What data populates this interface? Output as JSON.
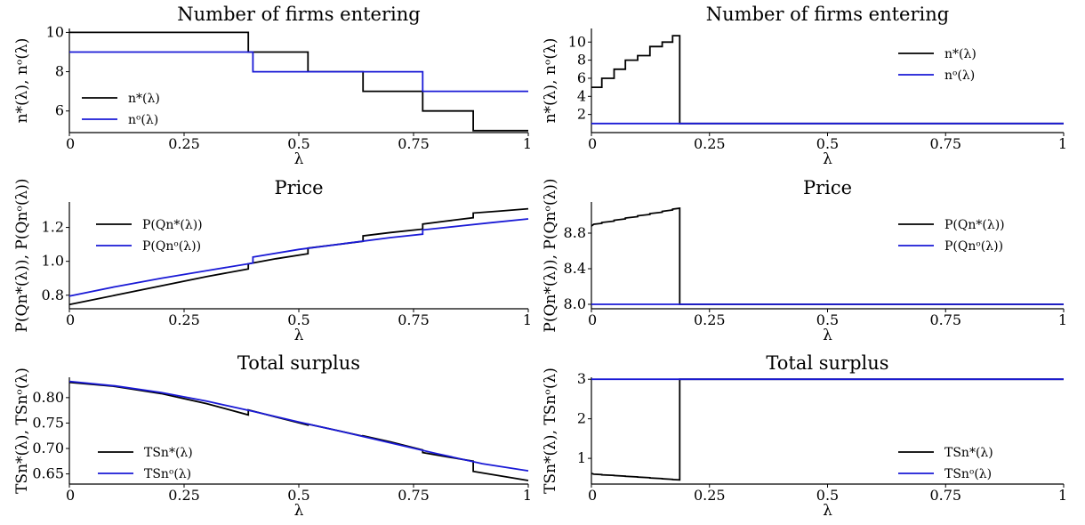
{
  "chart_data": [
    {
      "type": "line",
      "title": "Number of firms entering",
      "xlabel": "λ",
      "ylabel": "n*(λ),  nᵒ(λ)",
      "xlim": [
        0,
        1
      ],
      "ylim": [
        4.9,
        10.2
      ],
      "xticks": [
        0,
        0.25,
        0.5,
        0.75,
        1
      ],
      "xticklabels": [
        "0",
        "0.25",
        "0.5",
        "0.75",
        "1"
      ],
      "yticks": [
        6,
        8,
        10
      ],
      "yticklabels": [
        "6",
        "8",
        "10"
      ],
      "legend": "lower-left",
      "series": [
        {
          "name": "n*(λ)",
          "color": "#000000",
          "step": true,
          "x": [
            0,
            0.39,
            0.52,
            0.64,
            0.77,
            0.88,
            1
          ],
          "y": [
            10,
            9,
            8,
            7,
            6,
            5,
            5
          ]
        },
        {
          "name": "nᵒ(λ)",
          "color": "#1a1ad6",
          "step": true,
          "x": [
            0,
            0.4,
            0.77,
            1
          ],
          "y": [
            9,
            8,
            7,
            7
          ]
        }
      ]
    },
    {
      "type": "line",
      "title": "Number of firms entering",
      "xlabel": "λ",
      "ylabel": "n*(λ),  nᵒ(λ)",
      "xlim": [
        0,
        1
      ],
      "ylim": [
        0,
        11.5
      ],
      "xticks": [
        0,
        0.25,
        0.5,
        0.75,
        1
      ],
      "xticklabels": [
        "0",
        "0.25",
        "0.5",
        "0.75",
        "1"
      ],
      "yticks": [
        2,
        4,
        6,
        8,
        10
      ],
      "yticklabels": [
        "2",
        "4",
        "6",
        "8",
        "10"
      ],
      "legend": "top-right",
      "series": [
        {
          "name": "n*(λ)",
          "color": "#000000",
          "step": true,
          "x": [
            0,
            0.005,
            0.022,
            0.048,
            0.072,
            0.098,
            0.124,
            0.15,
            0.172,
            0.187,
            0.187,
            1
          ],
          "y": [
            5,
            5,
            6,
            7,
            8,
            8.5,
            9.5,
            10,
            10.7,
            10.7,
            1,
            1
          ]
        },
        {
          "name": "nᵒ(λ)",
          "color": "#1a1ad6",
          "step": true,
          "x": [
            0,
            1
          ],
          "y": [
            1,
            1
          ]
        }
      ]
    },
    {
      "type": "line",
      "title": "Price",
      "xlabel": "λ",
      "ylabel": "P(Qn*(λ)),  P(Qnᵒ(λ))",
      "xlim": [
        0,
        1
      ],
      "ylim": [
        0.72,
        1.35
      ],
      "xticks": [
        0,
        0.25,
        0.5,
        0.75,
        1
      ],
      "xticklabels": [
        "0",
        "0.25",
        "0.5",
        "0.75",
        "1"
      ],
      "yticks": [
        0.8,
        1.0,
        1.2
      ],
      "yticklabels": [
        "0.8",
        "1.0",
        "1.2"
      ],
      "legend": "top-left",
      "series": [
        {
          "name": "P(Qn*(λ))",
          "color": "#000000",
          "x": [
            0,
            0.1,
            0.2,
            0.3,
            0.39,
            0.39,
            0.45,
            0.52,
            0.52,
            0.58,
            0.64,
            0.64,
            0.7,
            0.77,
            0.77,
            0.82,
            0.88,
            0.88,
            0.94,
            1
          ],
          "y": [
            0.745,
            0.8,
            0.855,
            0.91,
            0.955,
            0.985,
            1.015,
            1.045,
            1.078,
            1.098,
            1.118,
            1.15,
            1.17,
            1.19,
            1.22,
            1.237,
            1.257,
            1.285,
            1.297,
            1.31
          ]
        },
        {
          "name": "P(Qnᵒ(λ))",
          "color": "#1a1ad6",
          "x": [
            0,
            0.1,
            0.2,
            0.3,
            0.4,
            0.4,
            0.5,
            0.6,
            0.7,
            0.77,
            0.77,
            0.85,
            0.92,
            1
          ],
          "y": [
            0.795,
            0.85,
            0.9,
            0.945,
            0.99,
            1.025,
            1.07,
            1.105,
            1.14,
            1.16,
            1.185,
            1.208,
            1.228,
            1.25
          ]
        }
      ]
    },
    {
      "type": "line",
      "title": "Price",
      "xlabel": "λ",
      "ylabel": "P(Qn*(λ)),  P(Qnᵒ(λ))",
      "xlim": [
        0,
        1
      ],
      "ylim": [
        7.95,
        9.15
      ],
      "xticks": [
        0,
        0.25,
        0.5,
        0.75,
        1
      ],
      "xticklabels": [
        "0",
        "0.25",
        "0.5",
        "0.75",
        "1"
      ],
      "yticks": [
        8.0,
        8.4,
        8.8
      ],
      "yticklabels": [
        "8.0",
        "8.4",
        "8.8"
      ],
      "legend": "top-right",
      "series": [
        {
          "name": "P(Qn*(λ))",
          "color": "#000000",
          "x": [
            0,
            0.005,
            0.022,
            0.022,
            0.048,
            0.048,
            0.072,
            0.072,
            0.098,
            0.098,
            0.124,
            0.124,
            0.15,
            0.15,
            0.172,
            0.172,
            0.187,
            0.187,
            1
          ],
          "y": [
            8.88,
            8.9,
            8.91,
            8.92,
            8.935,
            8.945,
            8.96,
            8.97,
            8.985,
            8.995,
            9.01,
            9.02,
            9.035,
            9.045,
            9.06,
            9.07,
            9.08,
            8.0,
            8.0
          ]
        },
        {
          "name": "P(Qnᵒ(λ))",
          "color": "#1a1ad6",
          "x": [
            0,
            1
          ],
          "y": [
            8.0,
            8.0
          ]
        }
      ]
    },
    {
      "type": "line",
      "title": "Total surplus",
      "xlabel": "λ",
      "ylabel": "TSn*(λ),  TSnᵒ(λ)",
      "xlim": [
        0,
        1
      ],
      "ylim": [
        0.63,
        0.84
      ],
      "xticks": [
        0,
        0.25,
        0.5,
        0.75,
        1
      ],
      "xticklabels": [
        "0",
        "0.25",
        "0.5",
        "0.75",
        "1"
      ],
      "yticks": [
        0.65,
        0.7,
        0.75,
        0.8
      ],
      "yticklabels": [
        "0.65",
        "0.70",
        "0.75",
        "0.80"
      ],
      "legend": "lower-left",
      "series": [
        {
          "name": "TSn*(λ)",
          "color": "#000000",
          "x": [
            0,
            0.1,
            0.2,
            0.3,
            0.39,
            0.39,
            0.45,
            0.52,
            0.52,
            0.58,
            0.64,
            0.64,
            0.7,
            0.77,
            0.77,
            0.82,
            0.88,
            0.88,
            0.94,
            1
          ],
          "y": [
            0.83,
            0.822,
            0.808,
            0.788,
            0.766,
            0.776,
            0.762,
            0.746,
            0.748,
            0.736,
            0.724,
            0.725,
            0.713,
            0.697,
            0.692,
            0.684,
            0.675,
            0.655,
            0.646,
            0.637
          ]
        },
        {
          "name": "TSnᵒ(λ)",
          "color": "#1a1ad6",
          "x": [
            0,
            0.1,
            0.2,
            0.3,
            0.4,
            0.5,
            0.6,
            0.7,
            0.8,
            0.9,
            1
          ],
          "y": [
            0.832,
            0.823,
            0.81,
            0.793,
            0.773,
            0.752,
            0.732,
            0.711,
            0.69,
            0.67,
            0.656
          ]
        }
      ]
    },
    {
      "type": "line",
      "title": "Total surplus",
      "xlabel": "λ",
      "ylabel": "TSn*(λ),  TSnᵒ(λ)",
      "xlim": [
        0,
        1
      ],
      "ylim": [
        0.35,
        3.05
      ],
      "xticks": [
        0,
        0.25,
        0.5,
        0.75,
        1
      ],
      "xticklabels": [
        "0",
        "0.25",
        "0.5",
        "0.75",
        "1"
      ],
      "yticks": [
        1,
        2,
        3
      ],
      "yticklabels": [
        "1",
        "2",
        "3"
      ],
      "legend": "lower-right",
      "series": [
        {
          "name": "TSn*(λ)",
          "color": "#000000",
          "x": [
            0,
            0.005,
            0.022,
            0.022,
            0.048,
            0.048,
            0.072,
            0.072,
            0.098,
            0.098,
            0.124,
            0.124,
            0.15,
            0.15,
            0.172,
            0.172,
            0.187,
            0.187,
            1
          ],
          "y": [
            0.62,
            0.6,
            0.59,
            0.585,
            0.57,
            0.565,
            0.55,
            0.545,
            0.53,
            0.525,
            0.51,
            0.505,
            0.49,
            0.485,
            0.47,
            0.465,
            0.455,
            3.0,
            3.0
          ]
        },
        {
          "name": "TSnᵒ(λ)",
          "color": "#1a1ad6",
          "x": [
            0,
            1
          ],
          "y": [
            3.0,
            3.0
          ]
        }
      ]
    }
  ]
}
